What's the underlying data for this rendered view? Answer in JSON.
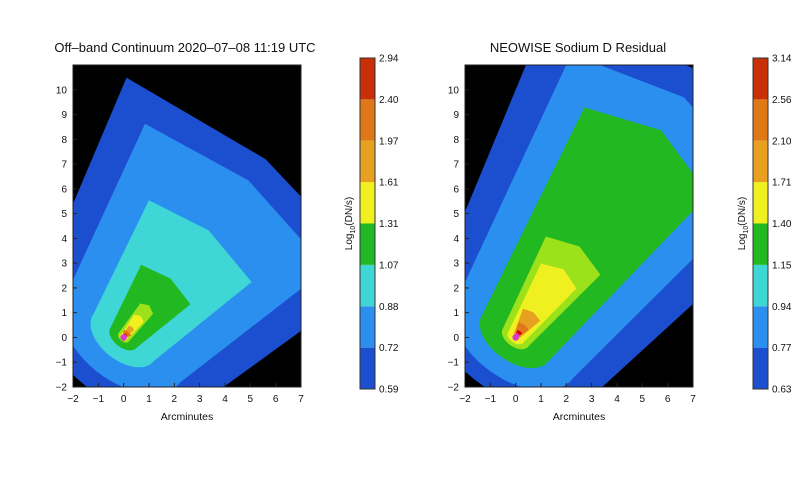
{
  "colors": {
    "background": "#ffffff",
    "plot_background": "#000000",
    "colormap": [
      "#1c4fd0",
      "#2b8ff0",
      "#3fd6d6",
      "#22b822",
      "#9be21a",
      "#f0f020",
      "#e8a020",
      "#e07818",
      "#c83008",
      "#e00000",
      "#d838d8"
    ]
  },
  "chart_data": [
    {
      "type": "heatmap",
      "title": "Off–band Continuum 2020–07–08 11:19 UTC",
      "xlabel": "Arcminutes",
      "ylabel": "",
      "xlim": [
        -2,
        7
      ],
      "ylim": [
        -2,
        11
      ],
      "xticks": [
        "−2",
        "−1",
        "0",
        "1",
        "2",
        "3",
        "4",
        "5",
        "6",
        "7"
      ],
      "yticks": [
        "−2",
        "−1",
        "0",
        "1",
        "2",
        "3",
        "4",
        "5",
        "6",
        "7",
        "8",
        "9",
        "10"
      ],
      "colorbar": {
        "label": "Log10(DN/s)",
        "label_main": "Log",
        "label_sub": "10",
        "label_tail": "(DN/s)",
        "ticks": [
          "0.59",
          "0.72",
          "0.88",
          "1.07",
          "1.31",
          "1.61",
          "1.97",
          "2.40",
          "2.94"
        ]
      },
      "nucleus": [
        0,
        0
      ],
      "tail_direction": [
        5.6,
        7.2
      ],
      "peak_value": 2.94,
      "grid": false
    },
    {
      "type": "heatmap",
      "title": "NEOWISE Sodium D Residual",
      "xlabel": "Arcminutes",
      "ylabel": "",
      "xlim": [
        -2,
        7
      ],
      "ylim": [
        -2,
        11
      ],
      "xticks": [
        "−2",
        "−1",
        "0",
        "1",
        "2",
        "3",
        "4",
        "5",
        "6",
        "7"
      ],
      "yticks": [
        "−2",
        "−1",
        "0",
        "1",
        "2",
        "3",
        "4",
        "5",
        "6",
        "7",
        "8",
        "9",
        "10"
      ],
      "colorbar": {
        "label": "Log10(DN/s)",
        "label_main": "Log",
        "label_sub": "10",
        "label_tail": "(DN/s)",
        "ticks": [
          "0.63",
          "0.77",
          "0.94",
          "1.15",
          "1.40",
          "1.71",
          "2.10",
          "2.56",
          "3.14"
        ]
      },
      "nucleus": [
        0,
        0
      ],
      "tail_direction": [
        7,
        10.2
      ],
      "peak_value": 3.14,
      "grid": false
    }
  ]
}
